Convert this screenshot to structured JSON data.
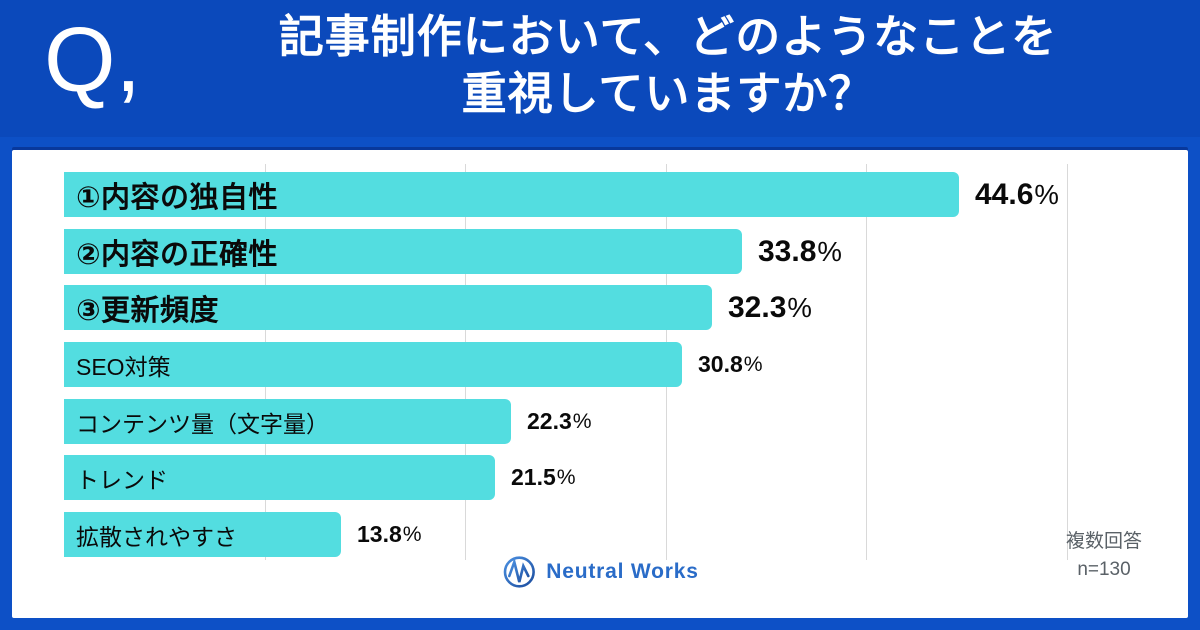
{
  "header": {
    "q_mark": "Q,",
    "title_line1": "記事制作において、どのようなことを",
    "title_line2": "重視していますか？"
  },
  "chart_data": {
    "type": "bar",
    "orientation": "horizontal",
    "unit": "%",
    "xlim": [
      0,
      50
    ],
    "gridline_step": 10,
    "grid": true,
    "legend": "none",
    "categories": [
      "①内容の独自性",
      "②内容の正確性",
      "③更新頻度",
      "SEO対策",
      "コンテンツ量（文字量）",
      "トレンド",
      "拡散されやすさ"
    ],
    "values": [
      44.6,
      33.8,
      32.3,
      30.8,
      22.3,
      21.5,
      13.8
    ],
    "items": [
      {
        "label": "①内容の独自性",
        "value": 44.6,
        "emphasis": true
      },
      {
        "label": "②内容の正確性",
        "value": 33.8,
        "emphasis": true
      },
      {
        "label": "③更新頻度",
        "value": 32.3,
        "emphasis": true
      },
      {
        "label": "SEO対策",
        "value": 30.8,
        "emphasis": false
      },
      {
        "label": "コンテンツ量（文字量）",
        "value": 22.3,
        "emphasis": false
      },
      {
        "label": "トレンド",
        "value": 21.5,
        "emphasis": false
      },
      {
        "label": "拡散されやすさ",
        "value": 13.8,
        "emphasis": false
      }
    ]
  },
  "footer": {
    "logo_text": "Neutral Works",
    "note_line1": "複数回答",
    "note_line2": "n=130"
  },
  "colors": {
    "header_bg": "#0b49bb",
    "page_bg": "#0d50c6",
    "bar": "#53dde0",
    "gridline": "#d9d9d9",
    "text": "#0a0a0a",
    "note_text": "#5a6167",
    "logo_blue": "#2a6cc8"
  }
}
